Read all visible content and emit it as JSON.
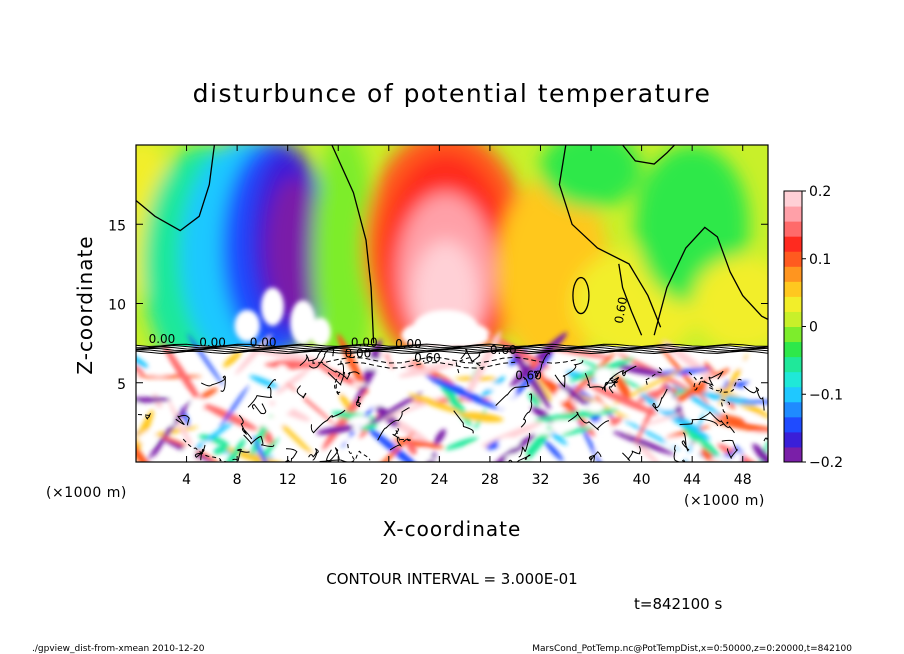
{
  "chart_data": {
    "type": "heatmap",
    "title": "disturbunce of potential temperature",
    "xlabel": "X-coordinate",
    "ylabel": "Z-coordinate",
    "x_unit": "(×1000 m)",
    "xlim": [
      0,
      50
    ],
    "ylim": [
      0,
      20
    ],
    "x_ticks": [
      4,
      8,
      12,
      16,
      20,
      24,
      28,
      32,
      36,
      40,
      44,
      48
    ],
    "y_ticks": [
      5,
      10,
      15
    ],
    "colorbar": {
      "vmin": -0.2,
      "vmax": 0.2,
      "ticks": [
        "0.2",
        "0.1",
        "0",
        "−0.1",
        "−0.2"
      ],
      "tick_values": [
        0.2,
        0.1,
        0,
        -0.1,
        -0.2
      ],
      "colors": [
        "#7a1fa8",
        "#3a1fd8",
        "#1f4bff",
        "#1f8bff",
        "#1fc8ff",
        "#1fe8d8",
        "#1fe89a",
        "#2ee84a",
        "#7ded2c",
        "#c8f02a",
        "#f2ee2a",
        "#ffc81f",
        "#ff951f",
        "#ff5a1f",
        "#ff2a1f",
        "#ff6a6a",
        "#ffa0a8",
        "#ffd0d6"
      ]
    },
    "contour_labels": [
      "0.00",
      "0.00",
      "0.00",
      "0.00",
      "0.60",
      "0.60",
      "0.00",
      "0.00",
      "0.60",
      "0.60"
    ],
    "features": [
      {
        "kind": "cold_anomaly",
        "x": 11.5,
        "z": 13,
        "value": -0.2
      },
      {
        "kind": "warm_anomaly",
        "x": 24.5,
        "z": 12,
        "value": 0.2
      },
      {
        "kind": "inversion_layer",
        "z": 7.3
      },
      {
        "kind": "turbulent_boundary_layer",
        "z_range": [
          0,
          7.3
        ]
      }
    ],
    "contour_interval": "CONTOUR INTERVAL = 3.000E-01",
    "time": "t=842100 s"
  },
  "footer": {
    "left": "./gpview_dist-from-xmean  2010-12-20",
    "right": "MarsCond_PotTemp.nc@PotTempDist,x=0:50000,z=0:20000,t=842100"
  }
}
